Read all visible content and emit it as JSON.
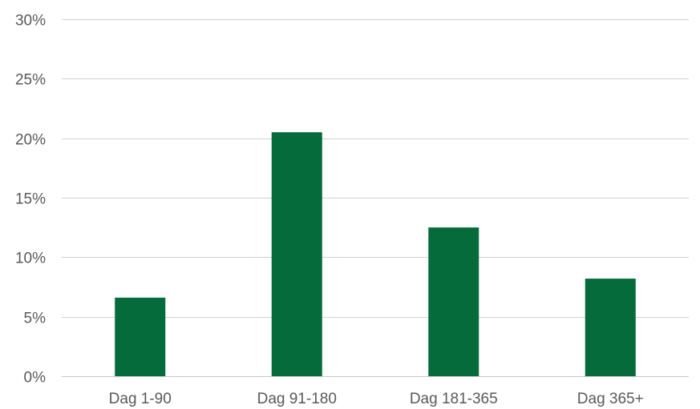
{
  "chart_data": {
    "type": "bar",
    "categories": [
      "Dag 1-90",
      "Dag 91-180",
      "Dag 181-365",
      "Dag 365+"
    ],
    "values": [
      6.6,
      20.5,
      12.5,
      8.2
    ],
    "ylim": [
      0,
      30
    ],
    "y_ticks": [
      0,
      5,
      10,
      15,
      20,
      25,
      30
    ],
    "y_tick_labels": [
      "0%",
      "5%",
      "10%",
      "15%",
      "20%",
      "25%",
      "30%"
    ],
    "title": "",
    "xlabel": "",
    "ylabel": "",
    "grid": true,
    "bar_color": "#056b3a"
  }
}
